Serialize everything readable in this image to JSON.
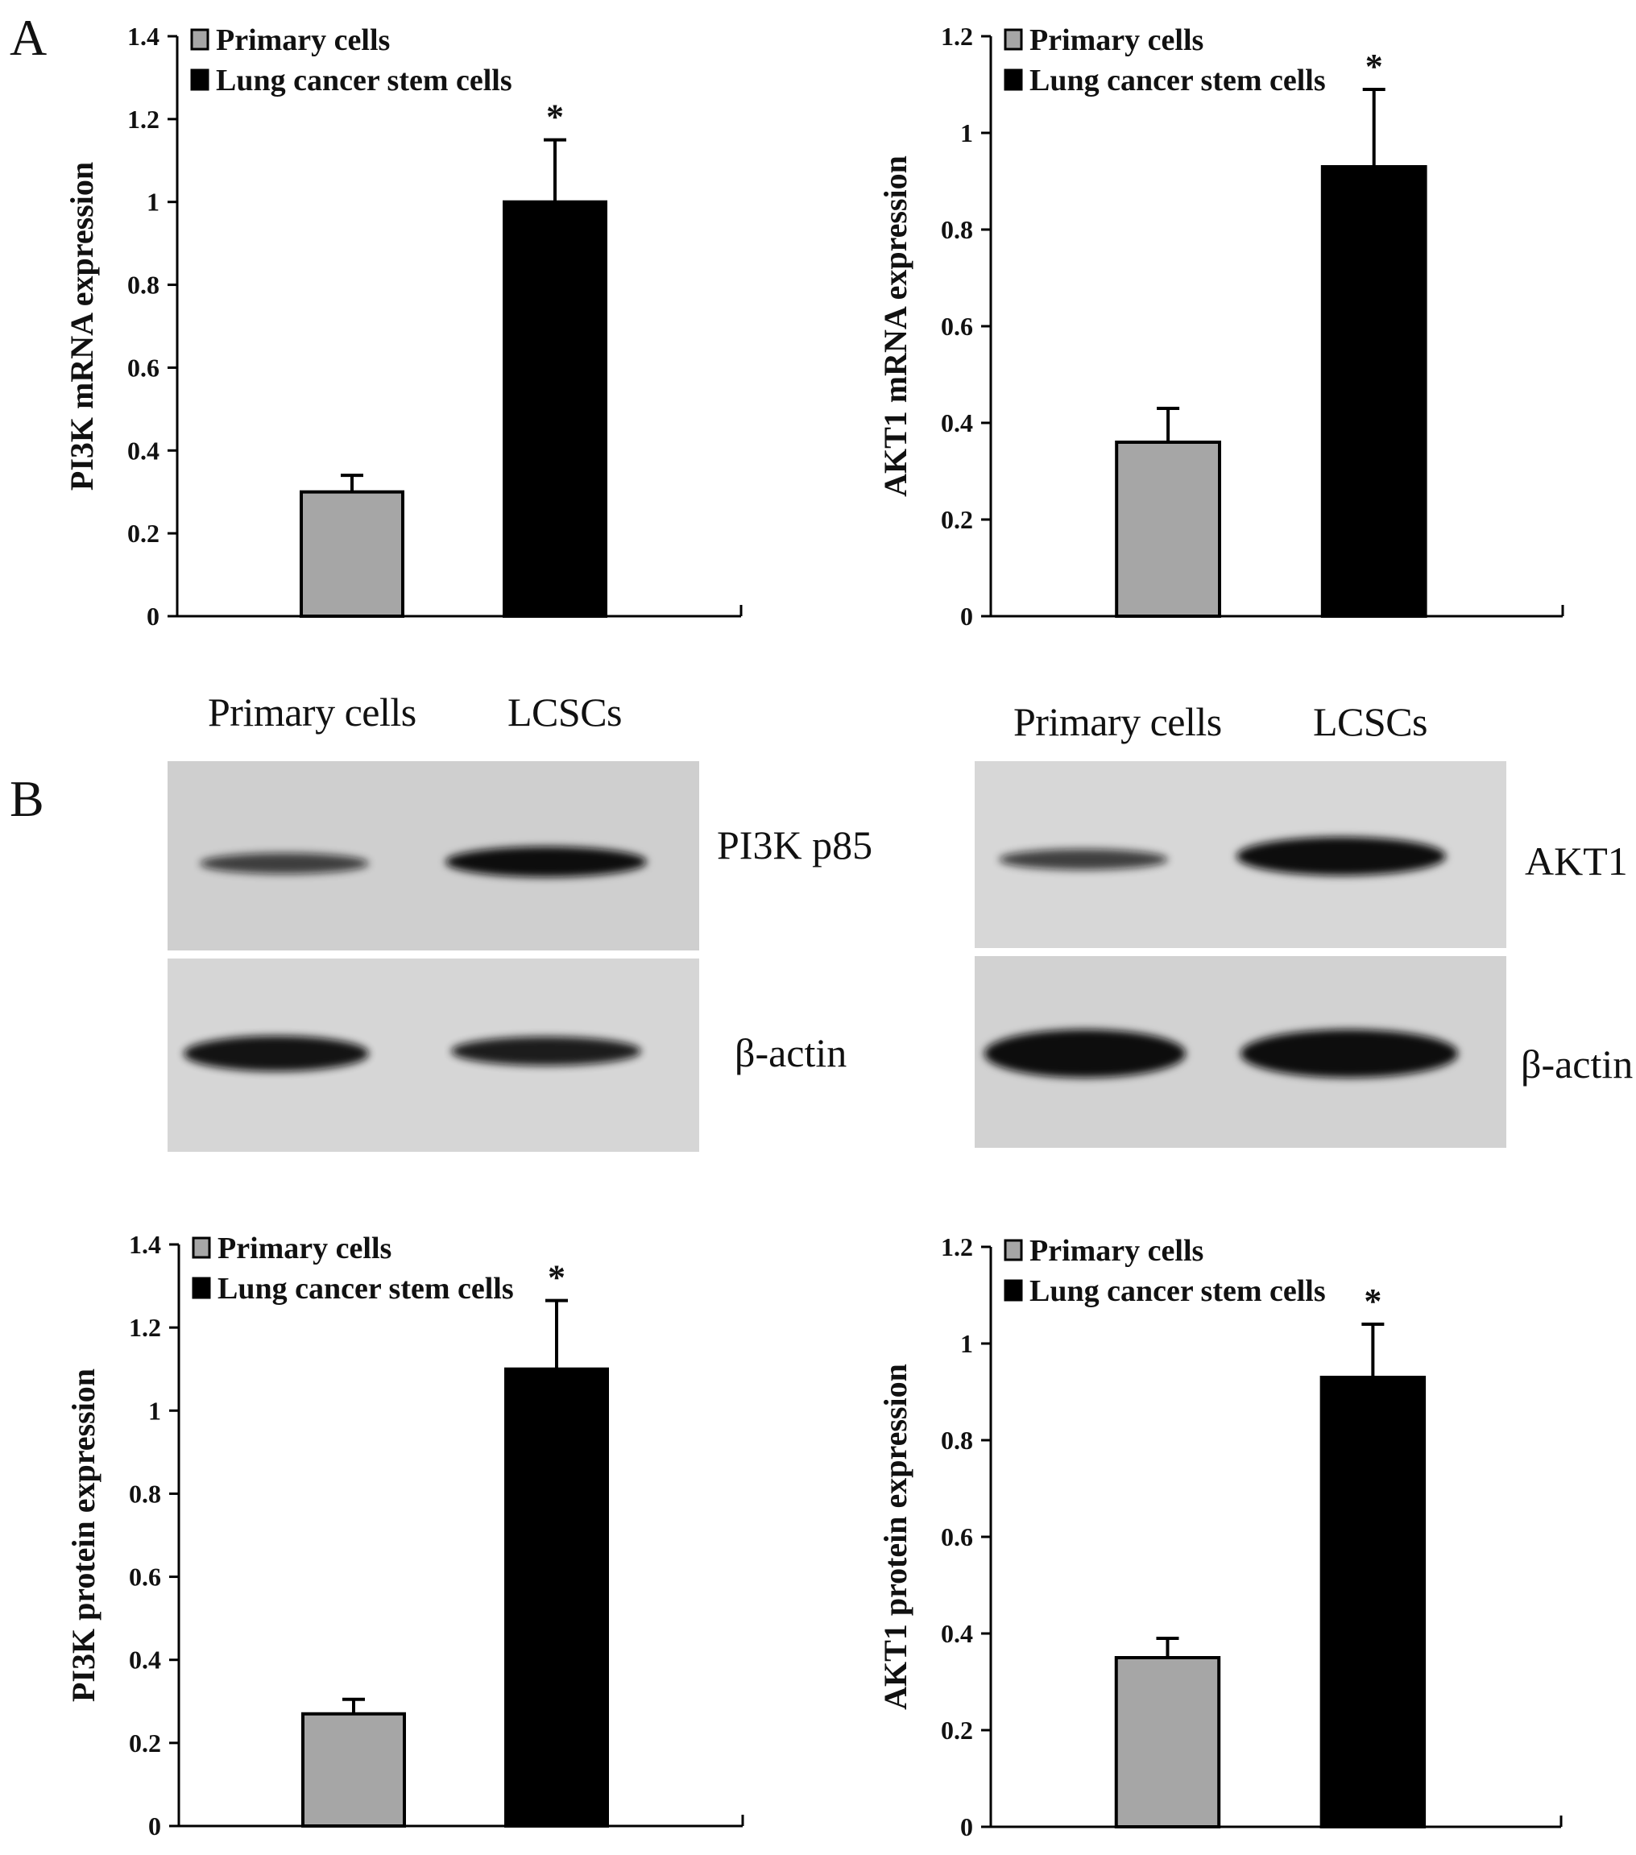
{
  "panels": {
    "a_letter": "A",
    "b_letter": "B"
  },
  "colors": {
    "primary": "#a6a6a6",
    "lcsc": "#000000",
    "axis": "#000000"
  },
  "blots": [
    {
      "lane_labels": [
        "Primary cells",
        "LCSCs"
      ],
      "target_label": "PI3K p85",
      "loading_label": "β-actin",
      "target_intensity": [
        0.55,
        1.0
      ],
      "loading_intensity": [
        0.95,
        0.85
      ]
    },
    {
      "lane_labels": [
        "Primary cells",
        "LCSCs"
      ],
      "target_label": "AKT1",
      "loading_label": "β-actin",
      "target_intensity": [
        0.55,
        1.0
      ],
      "loading_intensity": [
        1.0,
        1.0
      ]
    }
  ],
  "chart_data": [
    {
      "type": "bar",
      "categories": [
        "Primary cells",
        "Lung cancer stem cells"
      ],
      "values": [
        0.3,
        1.0
      ],
      "errors": [
        0.04,
        0.15
      ],
      "significance": [
        "",
        "*"
      ],
      "ylabel": "PI3K mRNA expression",
      "ylim": [
        0,
        1.4
      ],
      "yticks": [
        "0",
        "0.2",
        "0.4",
        "0.6",
        "0.8",
        "1",
        "1.2",
        "1.4"
      ],
      "legend": [
        "Primary cells",
        "Lung cancer stem cells"
      ],
      "legend_position": "top-left",
      "grid": false
    },
    {
      "type": "bar",
      "categories": [
        "Primary cells",
        "Lung cancer stem cells"
      ],
      "values": [
        0.36,
        0.93
      ],
      "errors": [
        0.07,
        0.16
      ],
      "significance": [
        "",
        "*"
      ],
      "ylabel": "AKT1 mRNA expression",
      "ylim": [
        0,
        1.2
      ],
      "yticks": [
        "0",
        "0.2",
        "0.4",
        "0.6",
        "0.8",
        "1",
        "1.2"
      ],
      "legend": [
        "Primary cells",
        "Lung cancer stem cells"
      ],
      "legend_position": "top-left",
      "grid": false
    },
    {
      "type": "bar",
      "categories": [
        "Primary cells",
        "Lung cancer stem cells"
      ],
      "values": [
        0.27,
        1.1
      ],
      "errors": [
        0.035,
        0.165
      ],
      "significance": [
        "",
        "*"
      ],
      "ylabel": "PI3K protein expression",
      "ylim": [
        0,
        1.4
      ],
      "yticks": [
        "0",
        "0.2",
        "0.4",
        "0.6",
        "0.8",
        "1",
        "1.2",
        "1.4"
      ],
      "legend": [
        "Primary cells",
        "Lung cancer stem cells"
      ],
      "legend_position": "top-left",
      "grid": false
    },
    {
      "type": "bar",
      "categories": [
        "Primary cells",
        "Lung cancer stem cells"
      ],
      "values": [
        0.35,
        0.93
      ],
      "errors": [
        0.04,
        0.11
      ],
      "significance": [
        "",
        "*"
      ],
      "ylabel": "AKT1 protein expression",
      "ylim": [
        0,
        1.2
      ],
      "yticks": [
        "0",
        "0.2",
        "0.4",
        "0.6",
        "0.8",
        "1",
        "1.2"
      ],
      "legend": [
        "Primary cells",
        "Lung cancer stem cells"
      ],
      "legend_position": "top-left",
      "grid": false
    }
  ]
}
